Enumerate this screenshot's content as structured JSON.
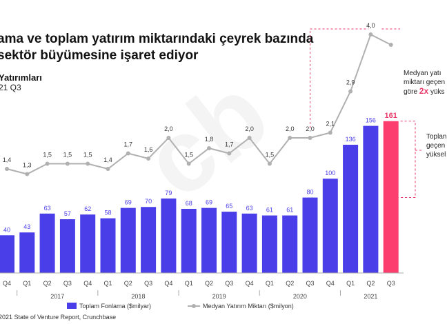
{
  "title_line1": "ama ve toplam yatırım miktarındaki çeyrek bazında",
  "title_line2": "sektör büyümesine işaret ediyor",
  "subtitle_line1": "Yatırımları",
  "subtitle_line2": "21 Q3",
  "source": "2021 State of Venture Report, Crunchbase",
  "watermark": "cb",
  "annotations": {
    "median_line1": "Medyan yatı",
    "median_line2": "miktarı geçen",
    "median_line3_pre": "göre",
    "median_line3_highlight": "2x",
    "median_line3_post": "yüks",
    "total_line1": "Toplan",
    "total_line2": "geçen",
    "total_line3": "yüksel"
  },
  "colors": {
    "bar": "#4a3ee8",
    "bar_highlight": "#fb3e6e",
    "line": "#b0b0b0",
    "highlight_text": "#e83a6a"
  },
  "chart_data": {
    "type": "bar",
    "categories": [
      "Q4",
      "Q1",
      "Q2",
      "Q3",
      "Q4",
      "Q1",
      "Q2",
      "Q3",
      "Q4",
      "Q1",
      "Q2",
      "Q3",
      "Q4",
      "Q1",
      "Q2",
      "Q3",
      "Q4",
      "Q1",
      "Q2",
      "Q3"
    ],
    "years": [
      {
        "label": "2017",
        "start": 1,
        "end": 4
      },
      {
        "label": "2018",
        "start": 5,
        "end": 8
      },
      {
        "label": "2019",
        "start": 9,
        "end": 12
      },
      {
        "label": "2020",
        "start": 13,
        "end": 16
      },
      {
        "label": "2021",
        "start": 17,
        "end": 19
      }
    ],
    "series": [
      {
        "name": "Toplam Fonlama ($milyar)",
        "type": "bar",
        "values": [
          40,
          43,
          63,
          57,
          62,
          58,
          69,
          70,
          79,
          68,
          69,
          65,
          63,
          61,
          61,
          80,
          100,
          136,
          156,
          161
        ],
        "labels": [
          "40",
          "43",
          "63",
          "57",
          "62",
          "58",
          "69",
          "70",
          "79",
          "68",
          "69",
          "65",
          "63",
          "61",
          "61",
          "80",
          "100",
          "136",
          "156",
          "161"
        ]
      },
      {
        "name": "Medyan Yatırım Miktarı ($milyon)",
        "type": "line",
        "values": [
          1.4,
          1.3,
          1.5,
          1.5,
          1.5,
          1.4,
          1.7,
          1.6,
          2.0,
          1.5,
          1.8,
          1.7,
          2.0,
          1.5,
          2.0,
          2.0,
          2.1,
          2.9,
          4.0,
          3.8
        ],
        "labels": [
          "1,4",
          "1,3",
          "1,5",
          "1,5",
          "1,5",
          "1,4",
          "1,7",
          "1,6",
          "2,0",
          "1,5",
          "1,8",
          "1,7",
          "2,0",
          "1,5",
          "2,0",
          "2,0",
          "2,1",
          "2,9",
          "4,0",
          ""
        ]
      }
    ],
    "highlight_index": 19,
    "legend": [
      "Toplam Fonlama ($milyar)",
      "Medyan Yatırım Miktarı ($milyon)"
    ]
  }
}
